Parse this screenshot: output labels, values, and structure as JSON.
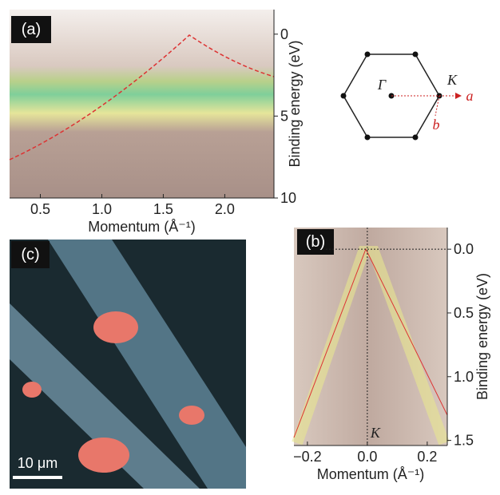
{
  "chart_data": [
    {
      "type": "image",
      "panel_label": "(a)",
      "xlabel": "Momentum (Å⁻¹)",
      "ylabel": "Binding energy (eV)",
      "xlim": [
        0.25,
        2.4
      ],
      "ylim": [
        -1.5,
        10
      ],
      "xticks": [
        0.5,
        {
          "value": 1,
          "label": "1.0"
        },
        1.5,
        {
          "value": 2,
          "label": "2.0"
        }
      ],
      "yticks": [
        0,
        5,
        10
      ]
    },
    {
      "type": "image",
      "panel_label": "(b)",
      "xlabel": "Momentum (Å⁻¹)",
      "ylabel": "Binding energy (eV)",
      "annotation": "K",
      "xlim": [
        -0.245,
        0.267
      ],
      "ylim": [
        -0.17,
        1.54
      ],
      "xticks": [
        {
          "value": -0.2,
          "label": "−0.2"
        },
        {
          "value": 0,
          "label": "0.0"
        },
        0.2
      ],
      "yticks": [
        {
          "value": 0,
          "label": "0.0"
        },
        0.5,
        {
          "value": 1,
          "label": "1.0"
        },
        1.5
      ]
    },
    {
      "type": "image",
      "panel_label": "(c)",
      "scale_bar": "10 μm"
    },
    {
      "type": "diagram",
      "labels": {
        "gamma": "Γ",
        "k": "K",
        "a": "a",
        "b": "b"
      }
    }
  ]
}
